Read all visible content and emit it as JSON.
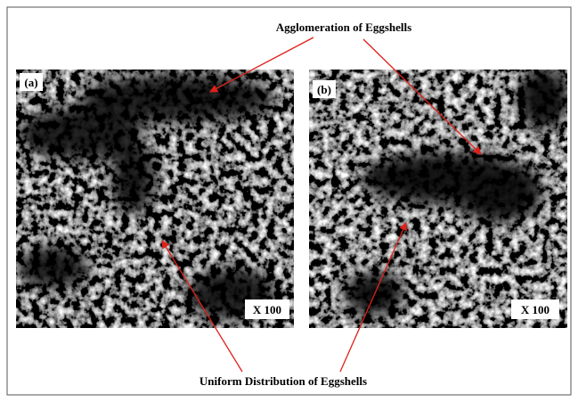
{
  "annotations": {
    "top": "Agglomeration of Eggshells",
    "bottom": "Uniform Distribution of Eggshells"
  },
  "panels": [
    {
      "label": "(a)",
      "magnification": "X 100"
    },
    {
      "label": "(b)",
      "magnification": "X 100"
    }
  ]
}
